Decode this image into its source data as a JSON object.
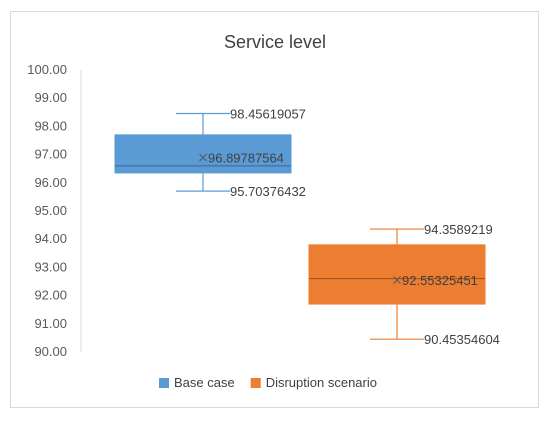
{
  "chart_data": {
    "type": "box",
    "title": "Service level",
    "xlabel": "",
    "ylabel": "",
    "ylim": [
      90.0,
      100.0
    ],
    "y_ticks": [
      "100.00",
      "99.00",
      "98.00",
      "97.00",
      "96.00",
      "95.00",
      "94.00",
      "93.00",
      "92.00",
      "91.00",
      "90.00"
    ],
    "series": [
      {
        "name": "Base case",
        "color": "#5b9bd5",
        "whisker_color": "#5b9bd5",
        "max": 98.45619057,
        "q3": 97.7,
        "median": 96.6,
        "q1": 96.35,
        "min": 95.70376432,
        "mean": 96.89787564,
        "labels": {
          "max": "98.45619057",
          "mean": "96.89787564",
          "min": "95.70376432"
        }
      },
      {
        "name": "Disruption scenario",
        "color": "#ed7d31",
        "whisker_color": "#ed7d31",
        "max": 94.3589219,
        "q3": 93.8,
        "median": 92.6,
        "q1": 91.7,
        "min": 90.45354604,
        "mean": 92.55325451,
        "labels": {
          "max": "94.3589219",
          "mean": "92.55325451",
          "min": "90.45354604"
        }
      }
    ],
    "grid": false,
    "legend": "bottom"
  }
}
